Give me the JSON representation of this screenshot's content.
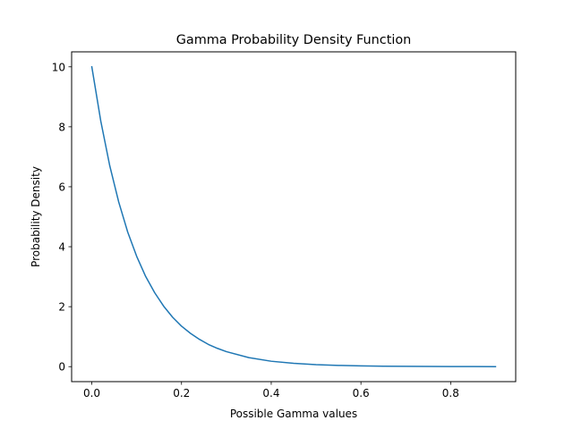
{
  "chart_data": {
    "type": "line",
    "title": "Gamma Probability Density Function",
    "xlabel": "Possible Gamma values",
    "ylabel": "Probability Density",
    "xlim": [
      -0.045,
      0.945
    ],
    "ylim": [
      -0.5,
      10.5
    ],
    "xticks": [
      0.0,
      0.2,
      0.4,
      0.6,
      0.8
    ],
    "xtick_labels": [
      "0.0",
      "0.2",
      "0.4",
      "0.6",
      "0.8"
    ],
    "yticks": [
      0,
      2,
      4,
      6,
      8,
      10
    ],
    "ytick_labels": [
      "0",
      "2",
      "4",
      "6",
      "8",
      "10"
    ],
    "grid": false,
    "legend": "none",
    "series": [
      {
        "color": "#1f77b4",
        "x": [
          0.0,
          0.02,
          0.04,
          0.06,
          0.08,
          0.1,
          0.12,
          0.14,
          0.16,
          0.18,
          0.2,
          0.22,
          0.24,
          0.26,
          0.28,
          0.3,
          0.35,
          0.4,
          0.45,
          0.5,
          0.55,
          0.6,
          0.65,
          0.7,
          0.75,
          0.8,
          0.85,
          0.9
        ],
        "y": [
          10.0,
          8.19,
          6.7,
          5.49,
          4.49,
          3.68,
          3.01,
          2.47,
          2.02,
          1.65,
          1.35,
          1.11,
          0.91,
          0.74,
          0.61,
          0.5,
          0.3,
          0.18,
          0.11,
          0.067,
          0.041,
          0.025,
          0.015,
          0.009,
          0.006,
          0.003,
          0.002,
          0.001
        ]
      }
    ]
  }
}
